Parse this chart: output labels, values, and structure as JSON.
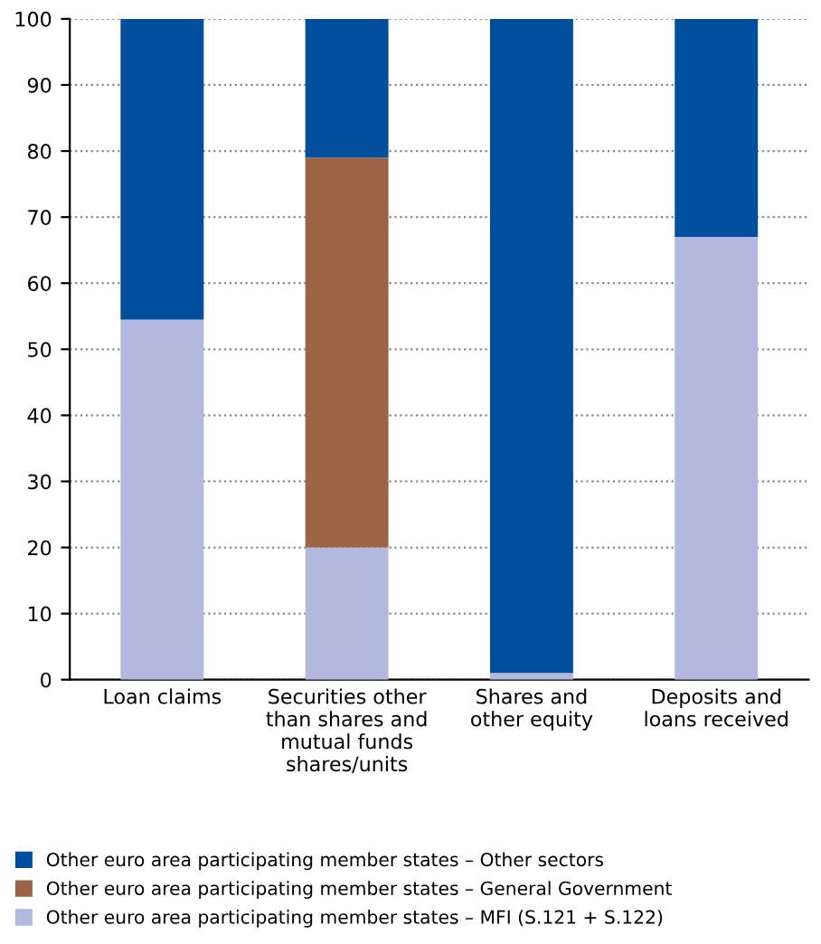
{
  "chart_data": {
    "type": "bar",
    "stacked": true,
    "categories": [
      "Loan claims",
      "Securities other\nthan shares and\nmutual funds\nshares/units",
      "Shares and\nother equity",
      "Deposits and\nloans received"
    ],
    "series": [
      {
        "name": "Other euro area participating member states – MFI (S.121 + S.122)",
        "color": "#b3b8de",
        "values": [
          54.5,
          20,
          1,
          67
        ]
      },
      {
        "name": "Other euro area participating member states – General Government",
        "color": "#9c6444",
        "values": [
          0,
          59,
          0,
          0
        ]
      },
      {
        "name": "Other euro area participating member states – Other sectors",
        "color": "#004f9f",
        "values": [
          45.5,
          21,
          99,
          33
        ]
      }
    ],
    "ylim": [
      0,
      100
    ],
    "yticks": [
      0,
      10,
      20,
      30,
      40,
      50,
      60,
      70,
      80,
      90,
      100
    ],
    "grid": "y",
    "legend": "bottom"
  }
}
